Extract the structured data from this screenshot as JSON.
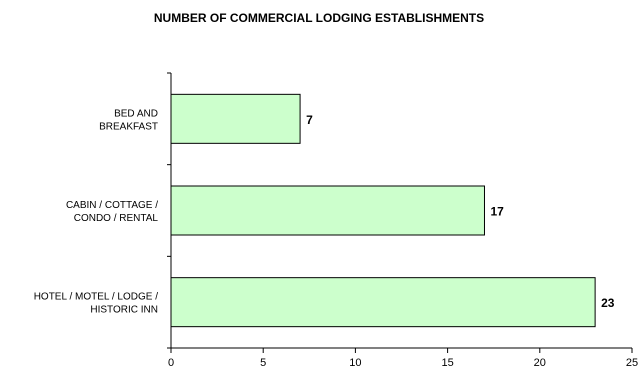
{
  "chart_data": {
    "type": "bar",
    "orientation": "horizontal",
    "title": "NUMBER OF COMMERCIAL LODGING ESTABLISHMENTS",
    "categories": [
      [
        "BED AND",
        "BREAKFAST"
      ],
      [
        "CABIN / COTTAGE /",
        "CONDO / RENTAL"
      ],
      [
        "HOTEL / MOTEL / LODGE /",
        "HISTORIC INN"
      ]
    ],
    "values": [
      7,
      17,
      23
    ],
    "data_labels": [
      "7",
      "17",
      "23"
    ],
    "xlim": [
      0,
      25
    ],
    "x_ticks": [
      0,
      5,
      10,
      15,
      20,
      25
    ],
    "x_tick_labels": [
      "0",
      "5",
      "10",
      "15",
      "20",
      "25"
    ],
    "grid": false,
    "legend": "none",
    "bar_color": "#ccffcc",
    "bar_edge_color": "#000000"
  }
}
